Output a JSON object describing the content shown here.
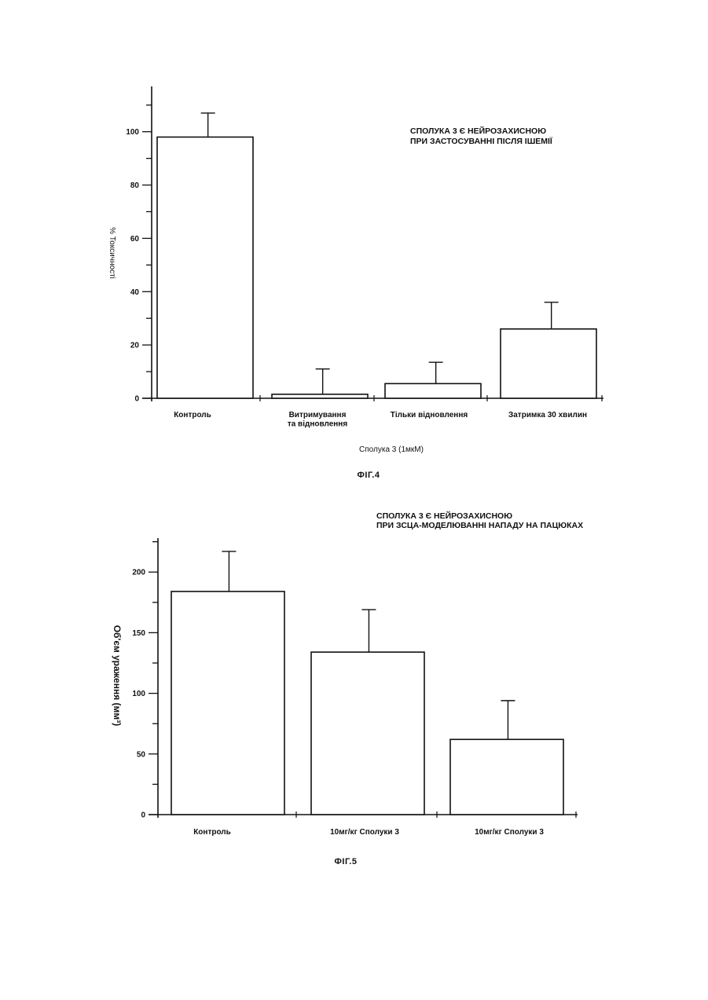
{
  "chart_data": [
    {
      "type": "bar",
      "title_lines": [
        "СПОЛУКА 3 Є НЕЙРОЗАХИСНОЮ",
        "ПРИ ЗАСТОСУВАННІ ПІСЛЯ ІШЕМІЇ"
      ],
      "ylabel": "% Токсичності",
      "xlabel": "Сполука 3 (1мкМ)",
      "figure_label": "ФІГ.4",
      "categories": [
        [
          "Контроль"
        ],
        [
          "Витримування",
          "та відновлення"
        ],
        [
          "Тільки відновлення"
        ],
        [
          "Затримка 30 хвилин"
        ]
      ],
      "values": [
        98,
        1.5,
        5.5,
        26
      ],
      "errors": [
        9,
        9.5,
        8,
        10
      ],
      "ylim": [
        0,
        117
      ],
      "yticks": [
        0,
        20,
        40,
        60,
        80,
        100
      ],
      "grid": false
    },
    {
      "type": "bar",
      "title_lines": [
        "СПОЛУКА 3 Є НЕЙРОЗАХИСНОЮ",
        "ПРИ ЗСЦА-МОДЕЛЮВАННІ НАПАДУ НА ПАЦЮКАХ"
      ],
      "ylabel": "Об'єм ураження (мм³)",
      "figure_label": "ФІГ.5",
      "categories": [
        [
          "Контроль"
        ],
        [
          "10мг/кг Сполуки 3"
        ],
        [
          "10мг/кг Сполуки 3"
        ]
      ],
      "values": [
        184,
        134,
        62
      ],
      "errors": [
        33,
        35,
        32
      ],
      "ylim": [
        0,
        228
      ],
      "yticks": [
        0,
        50,
        100,
        150,
        200
      ],
      "grid": false
    }
  ]
}
